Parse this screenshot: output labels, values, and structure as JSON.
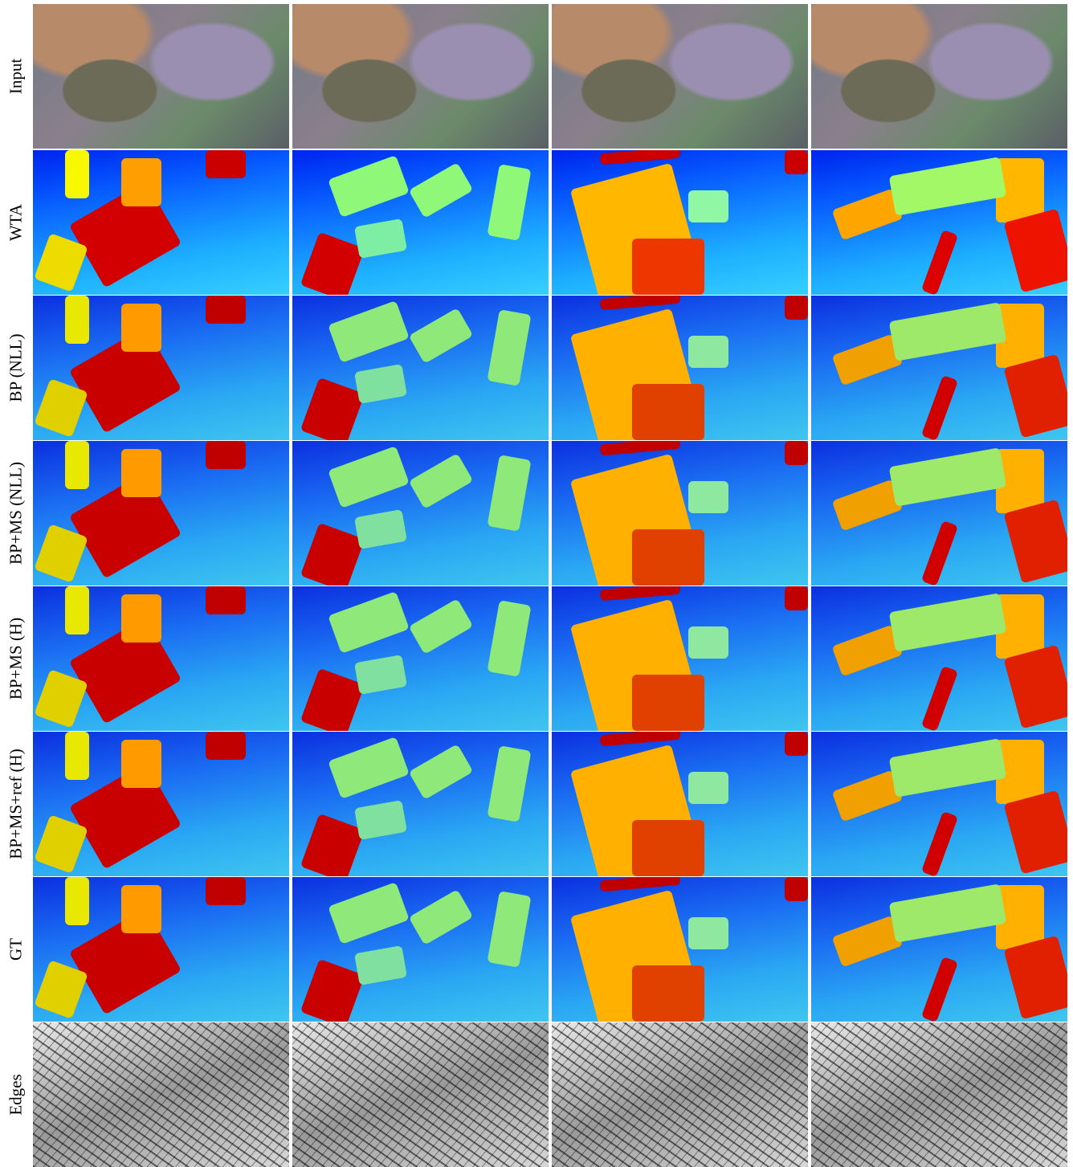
{
  "figure": {
    "row_labels": [
      "Input",
      "WTA",
      "BP (NLL)",
      "BP+MS (NLL)",
      "BP+MS (H)",
      "BP+MS+ref (H)",
      "GT",
      "Edges"
    ]
  }
}
